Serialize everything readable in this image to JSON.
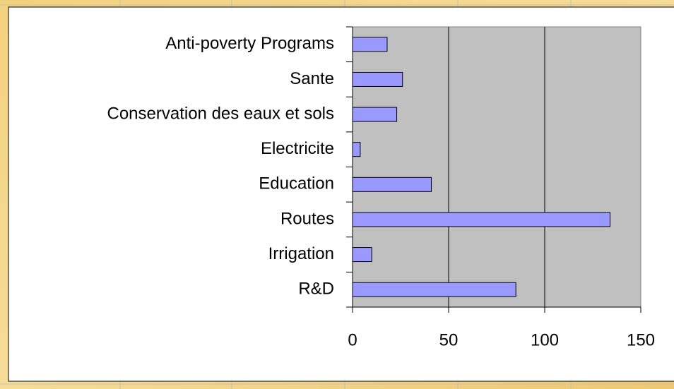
{
  "chart_data": {
    "type": "bar",
    "orientation": "horizontal",
    "categories": [
      "R&D",
      "Irrigation",
      "Routes",
      "Education",
      "Electricite",
      "Conservation des eaux et sols",
      "Sante",
      "Anti-poverty Programs"
    ],
    "values": [
      85,
      10,
      134,
      41,
      4,
      23,
      26,
      18
    ],
    "color": "#9999ff",
    "xlim": [
      0,
      150
    ],
    "xticks": [
      0,
      50,
      100,
      150
    ],
    "grid": true
  }
}
